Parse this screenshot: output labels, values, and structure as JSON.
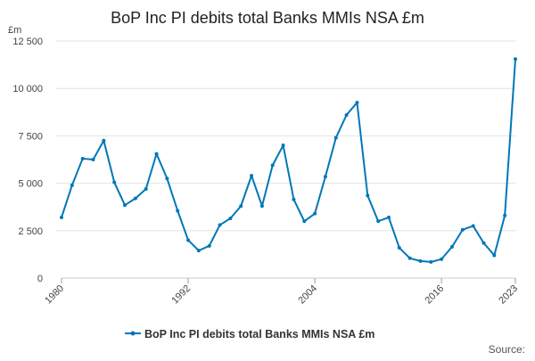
{
  "chart_data": {
    "type": "line",
    "title": "BoP Inc PI debits total Banks MMIs NSA £m",
    "ylabel": "£m",
    "xlabel": "",
    "source_label": "Source:",
    "x_ticks": [
      "1980",
      "1992",
      "2004",
      "2016",
      "2023"
    ],
    "y_ticks": [
      "0",
      "2 500",
      "5 000",
      "7 500",
      "10 000",
      "12 500"
    ],
    "ylim": [
      0,
      12500
    ],
    "xlim": [
      1980,
      2023
    ],
    "grid": true,
    "legend_position": "bottom",
    "series": [
      {
        "name": "BoP Inc PI debits total Banks MMIs NSA £m",
        "color": "#0077b6",
        "x": [
          1980,
          1981,
          1982,
          1983,
          1984,
          1985,
          1986,
          1987,
          1988,
          1989,
          1990,
          1991,
          1992,
          1993,
          1994,
          1995,
          1996,
          1997,
          1998,
          1999,
          2000,
          2001,
          2002,
          2003,
          2004,
          2005,
          2006,
          2007,
          2008,
          2009,
          2010,
          2011,
          2012,
          2013,
          2014,
          2015,
          2016,
          2017,
          2018,
          2019,
          2020,
          2021,
          2022,
          2023
        ],
        "values": [
          3200,
          4900,
          6300,
          6250,
          7250,
          5050,
          3850,
          4200,
          4700,
          6550,
          5250,
          3550,
          2000,
          1450,
          1700,
          2800,
          3150,
          3800,
          5400,
          3800,
          5950,
          7000,
          4150,
          3000,
          3400,
          5350,
          7400,
          8600,
          9250,
          4350,
          3000,
          3200,
          1600,
          1050,
          900,
          850,
          1000,
          1650,
          2550,
          2750,
          1850,
          1200,
          3300,
          11550
        ]
      }
    ]
  }
}
